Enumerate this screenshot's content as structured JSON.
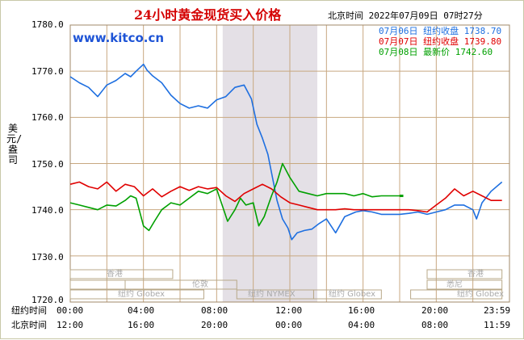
{
  "title": "24小时黄金现货买入价格",
  "timestamp": "北京时间  2022年07月09日 07时27分",
  "brand": "www.kitco.cn",
  "y_axis_label": "美元/盎司",
  "legend": [
    {
      "label": "07月06日  纽约收盘 1738.70",
      "color": "#1e6fe0"
    },
    {
      "label": "07月07日  纽约收盘 1739.80",
      "color": "#e00000"
    },
    {
      "label": "07月08日    最新价 1742.60",
      "color": "#00a000"
    }
  ],
  "x_rows": [
    {
      "name": "纽约时间",
      "ticks": [
        "00:00",
        "04:00",
        "08:00",
        "12:00",
        "16:00",
        "20:00",
        "23:59"
      ]
    },
    {
      "name": "北京时间",
      "ticks": [
        "12:00",
        "16:00",
        "20:00",
        "00:00",
        "04:00",
        "08:00",
        "11:59"
      ]
    }
  ],
  "sessions": [
    "香港",
    "纽约 Globex",
    "伦敦",
    "纽约 NYMEX",
    "纽约 Globex",
    "香港",
    "悉尼",
    "纽约 Globex"
  ],
  "colors": {
    "grid": "#c8a880",
    "shade": "#e4e0e6",
    "blue": "#1e6fe0",
    "red": "#e00000",
    "green": "#00a000",
    "title": "#d40000",
    "brand": "#1e54d6"
  },
  "chart_data": {
    "type": "line",
    "title": "24小时黄金现货买入价格",
    "ylabel": "美元/盎司",
    "ylim": [
      1720,
      1780
    ],
    "y_ticks": [
      "1780.0",
      "1770.0",
      "1760.0",
      "1750.0",
      "1740.0",
      "1730.0",
      "1720.0"
    ],
    "x_unit": "hours since 00:00 New York time",
    "xlim": [
      0,
      24
    ],
    "series": [
      {
        "name": "07月06日",
        "close": 1738.7,
        "color": "#1e6fe0",
        "x": [
          0.0,
          0.5,
          1.0,
          1.5,
          2.0,
          2.5,
          3.0,
          3.3,
          3.6,
          4.0,
          4.2,
          4.5,
          5.0,
          5.5,
          6.0,
          6.5,
          7.0,
          7.5,
          8.0,
          8.5,
          9.0,
          9.5,
          9.9,
          10.2,
          10.5,
          10.8,
          11.0,
          11.3,
          11.6,
          11.9,
          12.1,
          12.4,
          12.8,
          13.2,
          13.6,
          14.0,
          14.5,
          15.0,
          15.3,
          15.6,
          16.0,
          16.5,
          17.0,
          17.5,
          18.0,
          18.5,
          19.0,
          19.5,
          20.0,
          20.5,
          21.0,
          21.5,
          22.0,
          22.2,
          22.5,
          23.0,
          23.59
        ],
        "values": [
          1768.8,
          1767.5,
          1766.5,
          1764.5,
          1767.0,
          1768.0,
          1769.5,
          1768.8,
          1770.0,
          1771.5,
          1770.2,
          1769.0,
          1767.5,
          1764.8,
          1763.0,
          1762.0,
          1762.5,
          1762.0,
          1763.8,
          1764.5,
          1766.5,
          1767.0,
          1764.0,
          1758.5,
          1755.5,
          1752.0,
          1748.0,
          1742.0,
          1738.0,
          1736.0,
          1733.5,
          1735.0,
          1735.5,
          1735.8,
          1737.0,
          1738.0,
          1735.0,
          1738.5,
          1739.0,
          1739.5,
          1739.8,
          1739.5,
          1739.0,
          1739.0,
          1739.0,
          1739.2,
          1739.5,
          1739.0,
          1739.5,
          1740.0,
          1741.0,
          1741.0,
          1740.0,
          1738.0,
          1741.5,
          1744.0,
          1746.0
        ]
      },
      {
        "name": "07月07日",
        "close": 1739.8,
        "color": "#e00000",
        "x": [
          0.0,
          0.5,
          1.0,
          1.5,
          2.0,
          2.5,
          3.0,
          3.5,
          4.0,
          4.5,
          5.0,
          5.5,
          6.0,
          6.5,
          7.0,
          7.5,
          8.0,
          8.5,
          9.0,
          9.5,
          10.0,
          10.5,
          11.0,
          11.5,
          12.0,
          12.5,
          13.0,
          13.5,
          14.0,
          14.5,
          15.0,
          15.5,
          16.0,
          16.5,
          17.0,
          17.5,
          18.0,
          18.5,
          19.0,
          19.5,
          20.0,
          20.5,
          21.0,
          21.5,
          22.0,
          22.5,
          23.0,
          23.59
        ],
        "values": [
          1745.5,
          1746.0,
          1745.0,
          1744.5,
          1746.0,
          1744.0,
          1745.5,
          1745.0,
          1743.0,
          1744.5,
          1742.8,
          1744.0,
          1745.0,
          1744.2,
          1745.0,
          1744.5,
          1744.8,
          1743.0,
          1741.8,
          1743.5,
          1744.5,
          1745.5,
          1744.5,
          1742.8,
          1741.5,
          1741.0,
          1740.5,
          1740.0,
          1740.0,
          1740.0,
          1740.2,
          1740.0,
          1740.0,
          1740.0,
          1740.0,
          1740.0,
          1740.0,
          1740.0,
          1739.8,
          1739.5,
          1741.0,
          1742.5,
          1744.5,
          1743.0,
          1744.0,
          1743.0,
          1742.0,
          1742.0
        ]
      },
      {
        "name": "07月08日",
        "close": 1742.6,
        "color": "#00a000",
        "x": [
          0.0,
          0.5,
          1.0,
          1.5,
          2.0,
          2.5,
          3.0,
          3.3,
          3.6,
          4.0,
          4.3,
          4.6,
          5.0,
          5.5,
          6.0,
          6.5,
          7.0,
          7.5,
          8.0,
          8.3,
          8.6,
          9.0,
          9.3,
          9.6,
          10.0,
          10.3,
          10.6,
          11.0,
          11.3,
          11.6,
          12.0,
          12.5,
          13.0,
          13.5,
          14.0,
          14.5,
          15.0,
          15.5,
          16.0,
          16.5,
          17.0,
          17.5,
          18.0
        ],
        "values": [
          1741.5,
          1741.0,
          1740.5,
          1740.0,
          1741.0,
          1740.8,
          1742.0,
          1743.0,
          1742.5,
          1736.5,
          1735.5,
          1737.5,
          1740.0,
          1741.5,
          1741.0,
          1742.5,
          1744.0,
          1743.5,
          1744.5,
          1741.0,
          1737.5,
          1740.0,
          1742.5,
          1741.0,
          1741.5,
          1736.5,
          1738.5,
          1743.0,
          1746.0,
          1750.0,
          1747.0,
          1744.0,
          1743.5,
          1743.0,
          1743.5,
          1743.5,
          1743.5,
          1743.0,
          1743.5,
          1742.8,
          1743.0,
          1743.0,
          1743.0
        ]
      }
    ]
  }
}
